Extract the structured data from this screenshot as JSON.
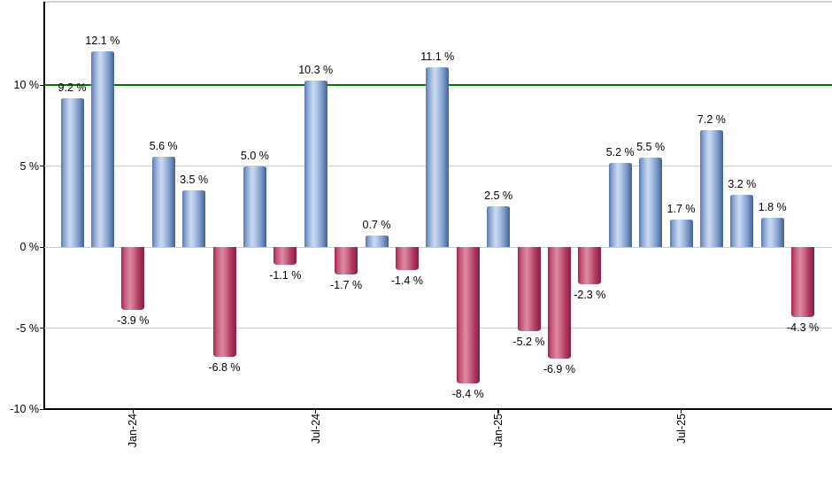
{
  "chart_data": {
    "type": "bar",
    "title": "",
    "xlabel": "",
    "ylabel": "",
    "values": [
      9.2,
      12.1,
      -3.9,
      5.6,
      3.5,
      -6.8,
      5.0,
      -1.1,
      10.3,
      -1.7,
      0.7,
      -1.4,
      11.1,
      -8.4,
      2.5,
      -5.2,
      -6.9,
      -2.3,
      5.2,
      5.5,
      1.7,
      7.2,
      3.2,
      1.8,
      -4.3
    ],
    "bar_display_labels": [
      "9.2 %",
      "12.1 %",
      "-3.9 %",
      "5.6 %",
      "3.5 %",
      "-6.8 %",
      "5.0 %",
      "-1.1 %",
      "10.3 %",
      "-1.7 %",
      "0.7 %",
      "-1.4 %",
      "11.1 %",
      "-8.4 %",
      "2.5 %",
      "-5.2 %",
      "-6.9 %",
      "-2.3 %",
      "5.2 %",
      "5.5 %",
      "1.7 %",
      "7.2 %",
      "3.2 %",
      "1.8 %",
      "-4.3 %"
    ],
    "x_ticks": [
      {
        "bar_index": 2,
        "label": "Jan-24"
      },
      {
        "bar_index": 8,
        "label": "Jul-24"
      },
      {
        "bar_index": 14,
        "label": "Jan-25"
      },
      {
        "bar_index": 20,
        "label": "Jul-25"
      }
    ],
    "y_ticks": [
      {
        "value": 10,
        "label": "10 %"
      },
      {
        "value": 5,
        "label": "5 %"
      },
      {
        "value": 0,
        "label": "0 %"
      },
      {
        "value": -5,
        "label": "-5 %"
      },
      {
        "value": -10,
        "label": "-10 %"
      }
    ],
    "ylim": [
      -10,
      15.2
    ],
    "grid_values": [
      5,
      0,
      -5
    ],
    "benchmark_line": {
      "value": 10,
      "color": "#007b00"
    },
    "legend": null,
    "colors": {
      "positive_dark": "#5b79ac",
      "positive_light": "#ccdaf1",
      "positive_edge": "#40609a",
      "negative_dark": "#a82448",
      "negative_light": "#dc8ba2",
      "negative_edge": "#8c1c3f",
      "grid": "#cccccc",
      "axis": "#000000",
      "top_border": "#d2d2d2",
      "label_text": "#000000",
      "background": "#ffffff"
    }
  }
}
